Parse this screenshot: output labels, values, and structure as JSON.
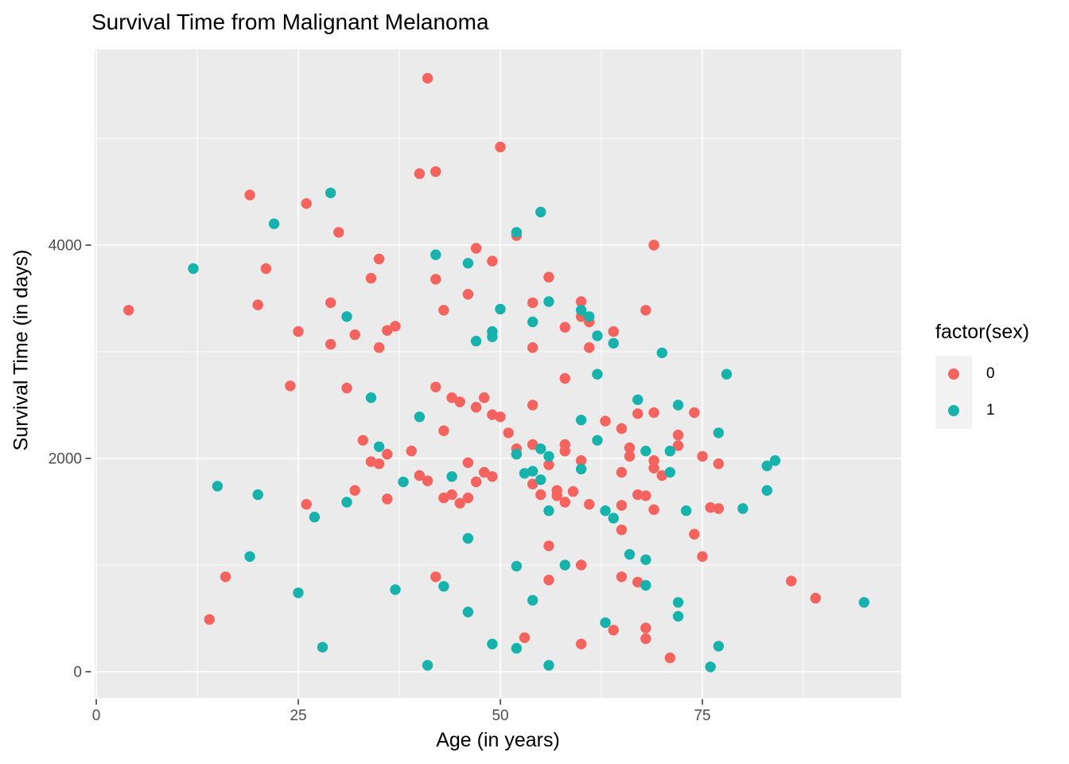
{
  "title": "Survival Time from Malignant Melanoma",
  "legend": {
    "title": "factor(sex)",
    "items": [
      {
        "label": "0",
        "color": "#f4635d"
      },
      {
        "label": "1",
        "color": "#18b2ad"
      }
    ]
  },
  "colors": {
    "panel_bg": "#ebebeb",
    "grid": "#ffffff",
    "tick_text": "#4d4d4d",
    "tick_mark": "#333333",
    "sex0": "#f4635d",
    "sex1": "#18b2ad"
  },
  "chart_data": {
    "type": "scatter",
    "title": "Survival Time from Malignant Melanoma",
    "xlabel": "Age (in years)",
    "ylabel": "Survival Time (in days)",
    "legend_title": "factor(sex)",
    "legend_position": "right",
    "grid": true,
    "xlim": [
      -0.2,
      99.6
    ],
    "ylim": [
      -246,
      5836
    ],
    "x_ticks": [
      0,
      25,
      50,
      75
    ],
    "x_minor_ticks": [
      12.5,
      37.5,
      62.5,
      87.5
    ],
    "y_ticks": [
      0,
      2000,
      4000
    ],
    "y_minor_ticks": [
      1000,
      3000,
      5000
    ],
    "series": [
      {
        "name": "0",
        "color": "#f4635d",
        "points": [
          [
            4,
            3390
          ],
          [
            14,
            490
          ],
          [
            16,
            890
          ],
          [
            19,
            4470
          ],
          [
            20,
            3440
          ],
          [
            21,
            3780
          ],
          [
            24,
            2680
          ],
          [
            25,
            3190
          ],
          [
            26,
            4390
          ],
          [
            26,
            1570
          ],
          [
            29,
            3460
          ],
          [
            29,
            3070
          ],
          [
            30,
            4120
          ],
          [
            31,
            2660
          ],
          [
            32,
            3160
          ],
          [
            32,
            1700
          ],
          [
            33,
            2170
          ],
          [
            34,
            3690
          ],
          [
            34,
            1970
          ],
          [
            35,
            3870
          ],
          [
            35,
            3040
          ],
          [
            35,
            1950
          ],
          [
            36,
            3200
          ],
          [
            36,
            2040
          ],
          [
            36,
            1620
          ],
          [
            37,
            3240
          ],
          [
            39,
            2070
          ],
          [
            40,
            4670
          ],
          [
            40,
            1840
          ],
          [
            41,
            5565
          ],
          [
            41,
            1790
          ],
          [
            42,
            4690
          ],
          [
            42,
            3680
          ],
          [
            42,
            2670
          ],
          [
            42,
            890
          ],
          [
            43,
            3390
          ],
          [
            43,
            2260
          ],
          [
            43,
            1630
          ],
          [
            44,
            2570
          ],
          [
            44,
            1660
          ],
          [
            45,
            2530
          ],
          [
            45,
            1580
          ],
          [
            46,
            3540
          ],
          [
            46,
            1960
          ],
          [
            46,
            1630
          ],
          [
            47,
            3970
          ],
          [
            47,
            2480
          ],
          [
            47,
            1780
          ],
          [
            48,
            2570
          ],
          [
            48,
            1870
          ],
          [
            49,
            3850
          ],
          [
            49,
            2410
          ],
          [
            49,
            1830
          ],
          [
            50,
            4920
          ],
          [
            50,
            2390
          ],
          [
            51,
            2240
          ],
          [
            52,
            4090
          ],
          [
            52,
            2090
          ],
          [
            53,
            320
          ],
          [
            54,
            3460
          ],
          [
            54,
            3040
          ],
          [
            54,
            2500
          ],
          [
            54,
            2130
          ],
          [
            54,
            1760
          ],
          [
            55,
            1660
          ],
          [
            56,
            3700
          ],
          [
            56,
            1940
          ],
          [
            56,
            1180
          ],
          [
            56,
            860
          ],
          [
            57,
            1700
          ],
          [
            57,
            1650
          ],
          [
            58,
            3230
          ],
          [
            58,
            2750
          ],
          [
            58,
            2130
          ],
          [
            58,
            2070
          ],
          [
            58,
            1590
          ],
          [
            59,
            1690
          ],
          [
            60,
            3470
          ],
          [
            60,
            3330
          ],
          [
            60,
            1980
          ],
          [
            60,
            1000
          ],
          [
            60,
            260
          ],
          [
            61,
            3280
          ],
          [
            61,
            3040
          ],
          [
            61,
            1570
          ],
          [
            63,
            2350
          ],
          [
            64,
            3190
          ],
          [
            64,
            390
          ],
          [
            65,
            2280
          ],
          [
            65,
            1870
          ],
          [
            65,
            1560
          ],
          [
            65,
            1330
          ],
          [
            65,
            890
          ],
          [
            66,
            2100
          ],
          [
            66,
            2020
          ],
          [
            67,
            2420
          ],
          [
            67,
            1660
          ],
          [
            67,
            840
          ],
          [
            68,
            3390
          ],
          [
            68,
            1650
          ],
          [
            68,
            410
          ],
          [
            68,
            310
          ],
          [
            69,
            4000
          ],
          [
            69,
            2430
          ],
          [
            69,
            1980
          ],
          [
            69,
            1910
          ],
          [
            69,
            1520
          ],
          [
            70,
            1840
          ],
          [
            71,
            130
          ],
          [
            72,
            2220
          ],
          [
            72,
            2120
          ],
          [
            74,
            2430
          ],
          [
            74,
            1290
          ],
          [
            75,
            2020
          ],
          [
            75,
            1080
          ],
          [
            76,
            1540
          ],
          [
            77,
            1950
          ],
          [
            77,
            1530
          ],
          [
            86,
            850
          ],
          [
            89,
            690
          ]
        ]
      },
      {
        "name": "1",
        "color": "#18b2ad",
        "points": [
          [
            12,
            3780
          ],
          [
            15,
            1740
          ],
          [
            19,
            1080
          ],
          [
            20,
            1660
          ],
          [
            22,
            4200
          ],
          [
            25,
            740
          ],
          [
            27,
            1450
          ],
          [
            28,
            230
          ],
          [
            29,
            4490
          ],
          [
            31,
            3330
          ],
          [
            31,
            1590
          ],
          [
            34,
            2570
          ],
          [
            35,
            2110
          ],
          [
            37,
            770
          ],
          [
            38,
            1780
          ],
          [
            40,
            2390
          ],
          [
            41,
            60
          ],
          [
            42,
            3910
          ],
          [
            43,
            800
          ],
          [
            44,
            1830
          ],
          [
            46,
            3830
          ],
          [
            46,
            1250
          ],
          [
            46,
            560
          ],
          [
            47,
            3100
          ],
          [
            49,
            3190
          ],
          [
            49,
            3140
          ],
          [
            49,
            260
          ],
          [
            50,
            3400
          ],
          [
            52,
            4120
          ],
          [
            52,
            2040
          ],
          [
            52,
            990
          ],
          [
            52,
            220
          ],
          [
            53,
            1860
          ],
          [
            54,
            3280
          ],
          [
            54,
            1880
          ],
          [
            54,
            670
          ],
          [
            55,
            4310
          ],
          [
            55,
            2090
          ],
          [
            55,
            1800
          ],
          [
            56,
            3470
          ],
          [
            56,
            2020
          ],
          [
            56,
            1510
          ],
          [
            56,
            60
          ],
          [
            58,
            1000
          ],
          [
            60,
            3390
          ],
          [
            60,
            2360
          ],
          [
            60,
            1900
          ],
          [
            61,
            3330
          ],
          [
            62,
            3150
          ],
          [
            62,
            2790
          ],
          [
            62,
            2170
          ],
          [
            63,
            1510
          ],
          [
            63,
            460
          ],
          [
            64,
            3080
          ],
          [
            64,
            1440
          ],
          [
            66,
            1100
          ],
          [
            67,
            2550
          ],
          [
            68,
            2070
          ],
          [
            68,
            1050
          ],
          [
            68,
            810
          ],
          [
            70,
            2990
          ],
          [
            71,
            2070
          ],
          [
            71,
            1870
          ],
          [
            72,
            2500
          ],
          [
            72,
            650
          ],
          [
            72,
            520
          ],
          [
            73,
            1510
          ],
          [
            76,
            45
          ],
          [
            77,
            2240
          ],
          [
            77,
            240
          ],
          [
            78,
            2790
          ],
          [
            80,
            1530
          ],
          [
            83,
            1930
          ],
          [
            83,
            1700
          ],
          [
            84,
            1980
          ],
          [
            95,
            650
          ]
        ]
      }
    ]
  }
}
